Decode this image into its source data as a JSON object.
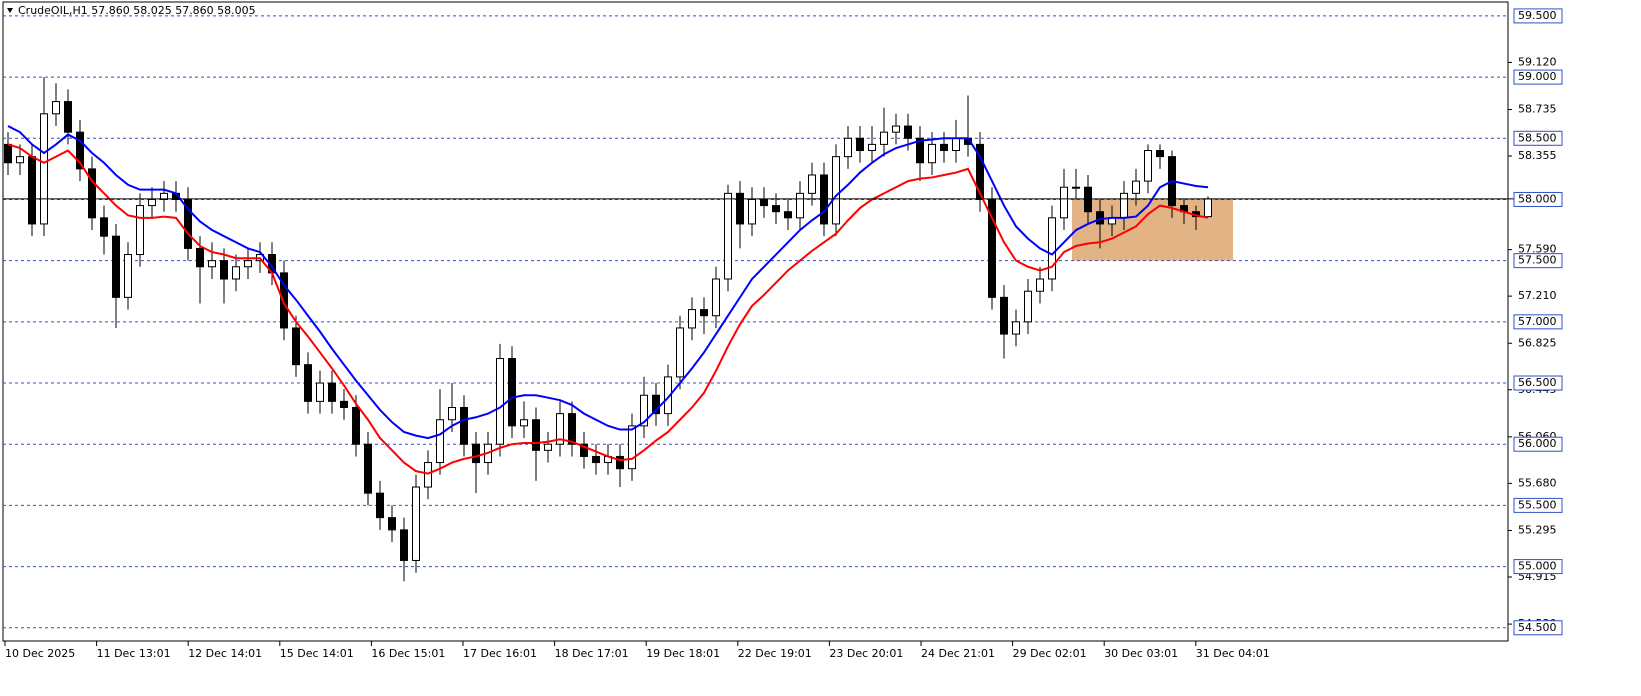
{
  "chart_data": {
    "type": "candlestick",
    "title": "CrudeOIL,H1  57.860 58.025 57.860 58.005",
    "ylim": [
      54.4,
      59.63
    ],
    "yticks": [
      {
        "value": 59.12,
        "label": "59.120"
      },
      {
        "value": 58.735,
        "label": "58.735"
      },
      {
        "value": 58.355,
        "label": "58.355"
      },
      {
        "value": 57.59,
        "label": "57.590"
      },
      {
        "value": 57.21,
        "label": "57.210"
      },
      {
        "value": 56.825,
        "label": "56.825"
      },
      {
        "value": 56.445,
        "label": "56.445"
      },
      {
        "value": 56.06,
        "label": "56.060"
      },
      {
        "value": 55.68,
        "label": "55.680"
      },
      {
        "value": 55.295,
        "label": "55.295"
      },
      {
        "value": 54.915,
        "label": "54.915"
      },
      {
        "value": 54.53,
        "label": "54.530"
      }
    ],
    "levels": [
      {
        "value": 59.5,
        "label": "59.500"
      },
      {
        "value": 59,
        "label": "59.000"
      },
      {
        "value": 58.5,
        "label": "58.500"
      },
      {
        "value": 58,
        "label": "58.000"
      },
      {
        "value": 57.5,
        "label": "57.500"
      },
      {
        "value": 57,
        "label": "57.000"
      },
      {
        "value": 56.5,
        "label": "56.500"
      },
      {
        "value": 56,
        "label": "56.000"
      },
      {
        "value": 55.5,
        "label": "55.500"
      },
      {
        "value": 55,
        "label": "55.000"
      },
      {
        "value": 54.5,
        "label": "54.500"
      }
    ],
    "xlabels": [
      "10 Dec 2025",
      "11 Dec 13:01",
      "12 Dec 14:01",
      "15 Dec 14:01",
      "16 Dec 15:01",
      "17 Dec 16:01",
      "18 Dec 17:01",
      "19 Dec 18:01",
      "22 Dec 19:01",
      "23 Dec 20:01",
      "24 Dec 21:01",
      "29 Dec 02:01",
      "30 Dec 03:01",
      "31 Dec 04:01"
    ],
    "zone": {
      "ylim": [
        57.5,
        58.0
      ],
      "color": "#d9a066"
    },
    "ohlc": [
      [
        58.45,
        58.55,
        58.2,
        58.3
      ],
      [
        58.3,
        58.45,
        58.2,
        58.35
      ],
      [
        58.35,
        58.45,
        57.7,
        57.8
      ],
      [
        57.8,
        59.0,
        57.7,
        58.7
      ],
      [
        58.7,
        58.95,
        58.6,
        58.8
      ],
      [
        58.8,
        58.9,
        58.45,
        58.55
      ],
      [
        58.55,
        58.65,
        58.15,
        58.25
      ],
      [
        58.25,
        58.35,
        57.75,
        57.85
      ],
      [
        57.85,
        57.95,
        57.55,
        57.7
      ],
      [
        57.7,
        57.8,
        56.95,
        57.2
      ],
      [
        57.2,
        57.65,
        57.1,
        57.55
      ],
      [
        57.55,
        58.05,
        57.45,
        57.95
      ],
      [
        57.95,
        58.1,
        57.85,
        58.0
      ],
      [
        58.0,
        58.15,
        57.9,
        58.05
      ],
      [
        58.05,
        58.15,
        57.9,
        58.0
      ],
      [
        58.0,
        58.1,
        57.5,
        57.6
      ],
      [
        57.6,
        57.7,
        57.15,
        57.45
      ],
      [
        57.45,
        57.65,
        57.35,
        57.5
      ],
      [
        57.5,
        57.6,
        57.15,
        57.35
      ],
      [
        57.35,
        57.55,
        57.25,
        57.45
      ],
      [
        57.45,
        57.6,
        57.35,
        57.5
      ],
      [
        57.5,
        57.65,
        57.4,
        57.55
      ],
      [
        57.55,
        57.65,
        57.3,
        57.4
      ],
      [
        57.4,
        57.5,
        56.85,
        56.95
      ],
      [
        56.95,
        57.05,
        56.55,
        56.65
      ],
      [
        56.65,
        56.75,
        56.25,
        56.35
      ],
      [
        56.35,
        56.6,
        56.25,
        56.5
      ],
      [
        56.5,
        56.6,
        56.25,
        56.35
      ],
      [
        56.35,
        56.45,
        56.2,
        56.3
      ],
      [
        56.3,
        56.4,
        55.9,
        56.0
      ],
      [
        56.0,
        56.1,
        55.5,
        55.6
      ],
      [
        55.6,
        55.7,
        55.3,
        55.4
      ],
      [
        55.4,
        55.5,
        55.2,
        55.3
      ],
      [
        55.3,
        55.4,
        54.88,
        55.05
      ],
      [
        55.05,
        55.75,
        54.95,
        55.65
      ],
      [
        55.65,
        55.95,
        55.55,
        55.85
      ],
      [
        55.85,
        56.45,
        55.75,
        56.2
      ],
      [
        56.2,
        56.5,
        56.1,
        56.3
      ],
      [
        56.3,
        56.4,
        55.9,
        56.0
      ],
      [
        56.0,
        56.1,
        55.6,
        55.85
      ],
      [
        55.85,
        56.1,
        55.75,
        56.0
      ],
      [
        56.0,
        56.82,
        55.9,
        56.7
      ],
      [
        56.7,
        56.8,
        56.05,
        56.15
      ],
      [
        56.15,
        56.35,
        56.05,
        56.2
      ],
      [
        56.2,
        56.3,
        55.7,
        55.95
      ],
      [
        55.95,
        56.1,
        55.85,
        56.0
      ],
      [
        56.0,
        56.35,
        55.9,
        56.25
      ],
      [
        56.25,
        56.35,
        55.9,
        56.0
      ],
      [
        56.0,
        56.1,
        55.8,
        55.9
      ],
      [
        55.9,
        56.0,
        55.75,
        55.85
      ],
      [
        55.85,
        56.0,
        55.75,
        55.9
      ],
      [
        55.9,
        56.0,
        55.65,
        55.8
      ],
      [
        55.8,
        56.25,
        55.7,
        56.15
      ],
      [
        56.15,
        56.55,
        56.05,
        56.4
      ],
      [
        56.4,
        56.5,
        56.15,
        56.25
      ],
      [
        56.25,
        56.65,
        56.15,
        56.55
      ],
      [
        56.55,
        57.05,
        56.45,
        56.95
      ],
      [
        56.95,
        57.2,
        56.85,
        57.1
      ],
      [
        57.1,
        57.2,
        56.9,
        57.05
      ],
      [
        57.05,
        57.45,
        56.95,
        57.35
      ],
      [
        57.35,
        58.12,
        57.25,
        58.05
      ],
      [
        58.05,
        58.15,
        57.6,
        57.8
      ],
      [
        57.8,
        58.1,
        57.7,
        58.0
      ],
      [
        58.0,
        58.1,
        57.85,
        57.95
      ],
      [
        57.95,
        58.05,
        57.8,
        57.9
      ],
      [
        57.9,
        58.0,
        57.75,
        57.85
      ],
      [
        57.85,
        58.15,
        57.75,
        58.05
      ],
      [
        58.05,
        58.3,
        57.95,
        58.2
      ],
      [
        58.2,
        58.3,
        57.7,
        57.8
      ],
      [
        57.8,
        58.45,
        57.7,
        58.35
      ],
      [
        58.35,
        58.6,
        58.25,
        58.5
      ],
      [
        58.5,
        58.6,
        58.3,
        58.4
      ],
      [
        58.4,
        58.6,
        58.3,
        58.45
      ],
      [
        58.45,
        58.75,
        58.35,
        58.55
      ],
      [
        58.55,
        58.7,
        58.45,
        58.6
      ],
      [
        58.6,
        58.7,
        58.4,
        58.5
      ],
      [
        58.5,
        58.6,
        58.15,
        58.3
      ],
      [
        58.3,
        58.55,
        58.2,
        58.45
      ],
      [
        58.45,
        58.55,
        58.3,
        58.4
      ],
      [
        58.4,
        58.65,
        58.3,
        58.5
      ],
      [
        58.5,
        58.85,
        58.35,
        58.45
      ],
      [
        58.45,
        58.55,
        57.9,
        58.0
      ],
      [
        58.0,
        58.1,
        57.1,
        57.2
      ],
      [
        57.2,
        57.3,
        56.7,
        56.9
      ],
      [
        56.9,
        57.1,
        56.8,
        57.0
      ],
      [
        57.0,
        57.35,
        56.9,
        57.25
      ],
      [
        57.25,
        57.45,
        57.15,
        57.35
      ],
      [
        57.35,
        57.95,
        57.25,
        57.85
      ],
      [
        57.85,
        58.25,
        57.75,
        58.1
      ],
      [
        58.1,
        58.25,
        58.0,
        58.1
      ],
      [
        58.1,
        58.2,
        57.8,
        57.9
      ],
      [
        57.9,
        58.0,
        57.6,
        57.8
      ],
      [
        57.8,
        57.95,
        57.7,
        57.85
      ],
      [
        57.85,
        58.15,
        57.75,
        58.05
      ],
      [
        58.05,
        58.25,
        57.95,
        58.15
      ],
      [
        58.15,
        58.45,
        58.05,
        58.4
      ],
      [
        58.4,
        58.45,
        58.25,
        58.35
      ],
      [
        58.35,
        58.4,
        57.85,
        57.95
      ],
      [
        57.95,
        58.0,
        57.8,
        57.9
      ],
      [
        57.9,
        57.95,
        57.75,
        57.86
      ],
      [
        57.86,
        58.025,
        57.86,
        58.005
      ]
    ],
    "series": [
      {
        "color": "#0000ff",
        "values": [
          58.6,
          58.55,
          58.45,
          58.38,
          58.45,
          58.53,
          58.48,
          58.38,
          58.3,
          58.2,
          58.12,
          58.08,
          58.08,
          58.08,
          58.05,
          57.92,
          57.82,
          57.75,
          57.7,
          57.65,
          57.6,
          57.57,
          57.45,
          57.3,
          57.18,
          57.05,
          56.92,
          56.78,
          56.65,
          56.52,
          56.4,
          56.28,
          56.18,
          56.1,
          56.07,
          56.05,
          56.08,
          56.15,
          56.2,
          56.22,
          56.25,
          56.3,
          56.38,
          56.4,
          56.4,
          56.38,
          56.36,
          56.32,
          56.25,
          56.2,
          56.15,
          56.12,
          56.12,
          56.18,
          56.28,
          56.38,
          56.5,
          56.62,
          56.75,
          56.9,
          57.05,
          57.2,
          57.35,
          57.45,
          57.55,
          57.65,
          57.75,
          57.83,
          57.9,
          58.03,
          58.12,
          58.22,
          58.3,
          58.37,
          58.42,
          58.45,
          58.48,
          58.49,
          58.5,
          58.5,
          58.5,
          58.35,
          58.15,
          57.95,
          57.78,
          57.68,
          57.6,
          57.55,
          57.65,
          57.75,
          57.8,
          57.84,
          57.85,
          57.85,
          57.86,
          57.95,
          58.1,
          58.15,
          58.13,
          58.11,
          58.1
        ]
      },
      {
        "color": "#ff0000",
        "values": [
          58.45,
          58.42,
          58.35,
          58.3,
          58.35,
          58.4,
          58.3,
          58.15,
          58.05,
          57.95,
          57.87,
          57.85,
          57.85,
          57.86,
          57.85,
          57.72,
          57.62,
          57.57,
          57.55,
          57.52,
          57.52,
          57.52,
          57.4,
          57.15,
          57.0,
          56.88,
          56.75,
          56.62,
          56.48,
          56.33,
          56.2,
          56.05,
          55.95,
          55.85,
          55.78,
          55.76,
          55.8,
          55.85,
          55.88,
          55.9,
          55.93,
          55.97,
          56.0,
          56.01,
          56.01,
          56.02,
          56.04,
          56.02,
          55.98,
          55.94,
          55.9,
          55.87,
          55.88,
          55.95,
          56.03,
          56.1,
          56.2,
          56.3,
          56.42,
          56.6,
          56.8,
          56.98,
          57.13,
          57.22,
          57.32,
          57.42,
          57.5,
          57.58,
          57.65,
          57.72,
          57.83,
          57.93,
          58.0,
          58.05,
          58.1,
          58.15,
          58.17,
          58.18,
          58.2,
          58.22,
          58.25,
          58.05,
          57.85,
          57.65,
          57.5,
          57.45,
          57.42,
          57.45,
          57.57,
          57.62,
          57.64,
          57.65,
          57.68,
          57.73,
          57.78,
          57.88,
          57.95,
          57.93,
          57.9,
          57.87,
          57.85
        ]
      }
    ]
  }
}
